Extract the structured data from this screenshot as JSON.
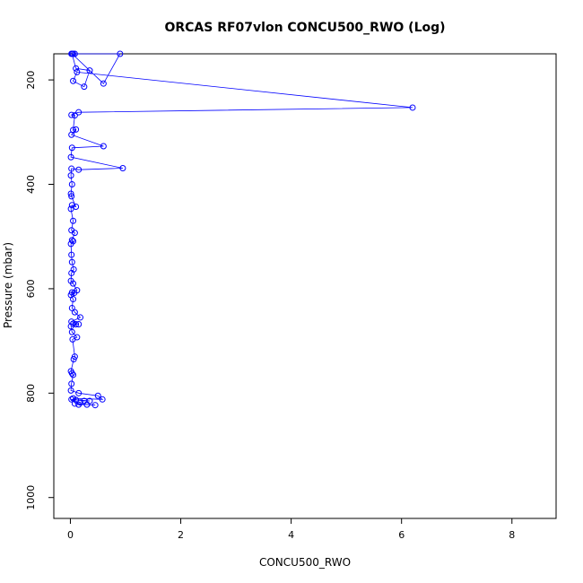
{
  "chart_data": {
    "type": "line",
    "title": "ORCAS RF07vlon CONCU500_RWO (Log)",
    "xlabel": "CONCU500_RWO",
    "ylabel": "Pressure (mbar)",
    "xlim": [
      -0.3,
      8.8
    ],
    "ylim": [
      1040,
      150
    ],
    "y_inverted": true,
    "x_ticks": [
      0,
      2,
      4,
      6,
      8
    ],
    "x_tick_labels": [
      "0",
      "2",
      "4",
      "6",
      "8"
    ],
    "y_ticks": [
      200,
      400,
      600,
      800,
      1000
    ],
    "y_tick_labels": [
      "200",
      "400",
      "600",
      "800",
      "1000"
    ],
    "grid": false,
    "series": [
      {
        "color": "#0000ff",
        "marker": "open-circle",
        "points": [
          [
            0.02,
            150
          ],
          [
            0.08,
            150
          ],
          [
            0.05,
            150
          ],
          [
            0.9,
            150
          ],
          [
            0.6,
            207
          ],
          [
            0.03,
            150
          ],
          [
            0.1,
            178
          ],
          [
            0.35,
            182
          ],
          [
            0.25,
            213
          ],
          [
            0.05,
            202
          ],
          [
            0.12,
            185
          ],
          [
            6.2,
            253
          ],
          [
            0.15,
            262
          ],
          [
            0.02,
            267
          ],
          [
            0.08,
            268
          ],
          [
            0.05,
            296
          ],
          [
            0.1,
            295
          ],
          [
            0.02,
            305
          ],
          [
            0.6,
            327
          ],
          [
            0.03,
            330
          ],
          [
            0.01,
            348
          ],
          [
            0.95,
            369
          ],
          [
            0.15,
            372
          ],
          [
            0.02,
            370
          ],
          [
            0.01,
            383
          ],
          [
            0.03,
            400
          ],
          [
            0.01,
            418
          ],
          [
            0.02,
            423
          ],
          [
            0.1,
            443
          ],
          [
            0.03,
            440
          ],
          [
            0.01,
            447
          ],
          [
            0.05,
            470
          ],
          [
            0.02,
            488
          ],
          [
            0.08,
            493
          ],
          [
            0.03,
            507
          ],
          [
            0.05,
            509
          ],
          [
            0.01,
            514
          ],
          [
            0.02,
            535
          ],
          [
            0.03,
            549
          ],
          [
            0.06,
            563
          ],
          [
            0.02,
            570
          ],
          [
            0.01,
            585
          ],
          [
            0.05,
            590
          ],
          [
            0.12,
            603
          ],
          [
            0.03,
            607
          ],
          [
            0.07,
            608
          ],
          [
            0.01,
            612
          ],
          [
            0.05,
            620
          ],
          [
            0.03,
            637
          ],
          [
            0.08,
            645
          ],
          [
            0.18,
            655
          ],
          [
            0.02,
            663
          ],
          [
            0.15,
            668
          ],
          [
            0.05,
            667
          ],
          [
            0.1,
            668
          ],
          [
            0.01,
            672
          ],
          [
            0.03,
            683
          ],
          [
            0.12,
            693
          ],
          [
            0.04,
            697
          ],
          [
            0.08,
            730
          ],
          [
            0.06,
            735
          ],
          [
            0.01,
            758
          ],
          [
            0.03,
            762
          ],
          [
            0.05,
            765
          ],
          [
            0.02,
            782
          ],
          [
            0.01,
            795
          ],
          [
            0.15,
            800
          ],
          [
            0.5,
            805
          ],
          [
            0.58,
            812
          ],
          [
            0.05,
            810
          ],
          [
            0.1,
            813
          ],
          [
            0.25,
            815
          ],
          [
            0.35,
            815
          ],
          [
            0.02,
            812
          ],
          [
            0.15,
            822
          ],
          [
            0.3,
            822
          ],
          [
            0.45,
            823
          ],
          [
            0.08,
            820
          ],
          [
            0.18,
            818
          ]
        ]
      }
    ]
  }
}
